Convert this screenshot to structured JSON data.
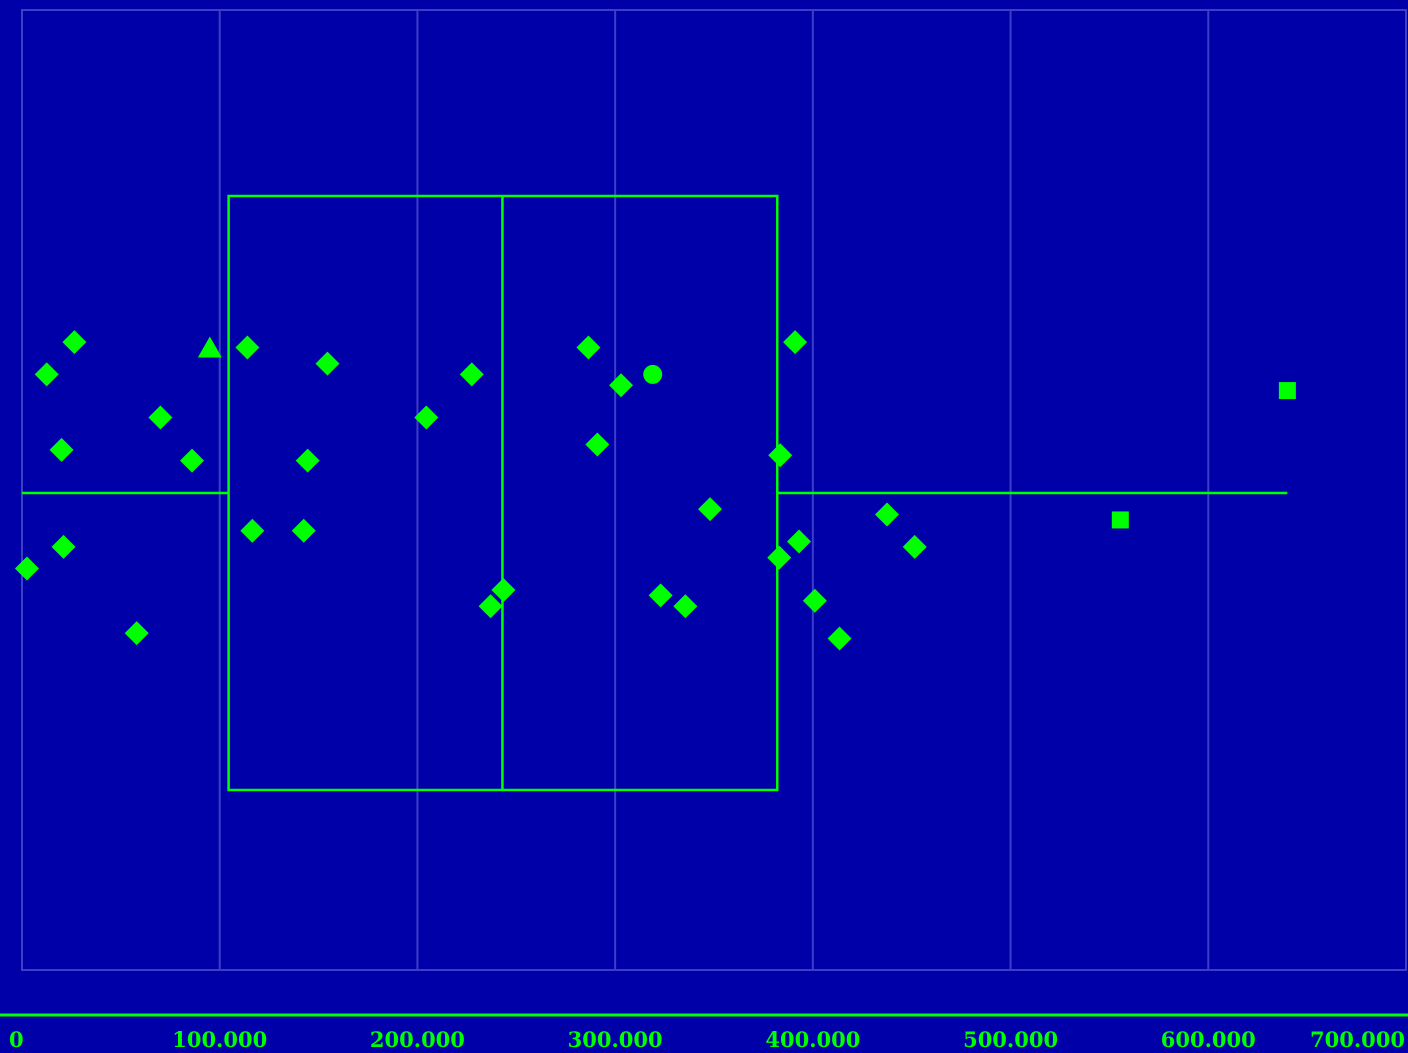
{
  "chart_data": {
    "type": "box",
    "orientation": "horizontal",
    "title": "",
    "xlabel": "",
    "ylabel": "",
    "xlim": [
      0,
      700000
    ],
    "x_ticks": [
      0,
      100000,
      200000,
      300000,
      400000,
      500000,
      600000,
      700000
    ],
    "x_tick_labels": [
      "0",
      "100.000",
      "200.000",
      "300.000",
      "400.000",
      "500.000",
      "600.000",
      "700.000"
    ],
    "grid": true,
    "legend": "none",
    "box": {
      "whisker_low": 0,
      "q1": 104500,
      "median": 243000,
      "q3": 382000,
      "whisker_high": 640000
    },
    "jitter_points": [
      {
        "x": 2500,
        "y": -0.07,
        "marker": "diamond"
      },
      {
        "x": 12500,
        "y": 0.11,
        "marker": "diamond"
      },
      {
        "x": 20000,
        "y": 0.04,
        "marker": "diamond"
      },
      {
        "x": 21000,
        "y": -0.05,
        "marker": "diamond"
      },
      {
        "x": 26500,
        "y": 0.14,
        "marker": "diamond"
      },
      {
        "x": 58000,
        "y": -0.13,
        "marker": "diamond"
      },
      {
        "x": 70000,
        "y": 0.07,
        "marker": "diamond"
      },
      {
        "x": 86000,
        "y": 0.03,
        "marker": "diamond"
      },
      {
        "x": 95000,
        "y": 0.135,
        "marker": "triangle"
      },
      {
        "x": 114000,
        "y": 0.135,
        "marker": "diamond"
      },
      {
        "x": 116500,
        "y": -0.035,
        "marker": "diamond"
      },
      {
        "x": 142500,
        "y": -0.035,
        "marker": "diamond"
      },
      {
        "x": 144500,
        "y": 0.03,
        "marker": "diamond"
      },
      {
        "x": 154500,
        "y": 0.12,
        "marker": "diamond"
      },
      {
        "x": 204500,
        "y": 0.07,
        "marker": "diamond"
      },
      {
        "x": 227500,
        "y": 0.11,
        "marker": "diamond"
      },
      {
        "x": 237000,
        "y": -0.105,
        "marker": "diamond"
      },
      {
        "x": 243500,
        "y": -0.09,
        "marker": "diamond"
      },
      {
        "x": 286500,
        "y": 0.135,
        "marker": "diamond"
      },
      {
        "x": 291000,
        "y": 0.045,
        "marker": "diamond"
      },
      {
        "x": 303000,
        "y": 0.1,
        "marker": "diamond"
      },
      {
        "x": 323000,
        "y": -0.095,
        "marker": "diamond"
      },
      {
        "x": 335500,
        "y": -0.105,
        "marker": "diamond"
      },
      {
        "x": 348000,
        "y": -0.015,
        "marker": "diamond"
      },
      {
        "x": 383000,
        "y": -0.06,
        "marker": "diamond"
      },
      {
        "x": 383500,
        "y": 0.035,
        "marker": "diamond"
      },
      {
        "x": 391000,
        "y": 0.14,
        "marker": "diamond"
      },
      {
        "x": 393000,
        "y": -0.045,
        "marker": "diamond"
      },
      {
        "x": 401000,
        "y": -0.1,
        "marker": "diamond"
      },
      {
        "x": 413500,
        "y": -0.135,
        "marker": "diamond"
      },
      {
        "x": 437500,
        "y": -0.02,
        "marker": "diamond"
      },
      {
        "x": 451500,
        "y": -0.05,
        "marker": "diamond"
      },
      {
        "x": 319000,
        "y": 0.11,
        "marker": "circle"
      },
      {
        "x": 555500,
        "y": -0.025,
        "marker": "square"
      },
      {
        "x": 640000,
        "y": 0.095,
        "marker": "square"
      }
    ]
  },
  "colors": {
    "background": "#0000a8",
    "grid": "#3d3dc8",
    "foreground": "#00ff00"
  }
}
